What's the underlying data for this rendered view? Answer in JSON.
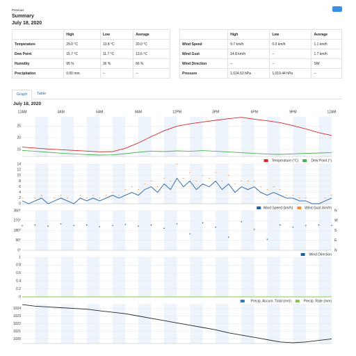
{
  "header": {
    "back": "Previous",
    "title": "Summary",
    "date": "July 18, 2020"
  },
  "tables": [
    {
      "columns": [
        "High",
        "Low",
        "Average"
      ],
      "rows": [
        [
          "Temperature",
          "29.0 °C",
          "13.8 °C",
          "20.0 °C"
        ],
        [
          "Dew Point",
          "15.7 °C",
          "11.7 °C",
          "13.6 °C"
        ],
        [
          "Humidity",
          "95 %",
          "36 %",
          "66 %"
        ],
        [
          "Precipitation",
          "0.00 mm",
          "--",
          "--"
        ]
      ]
    },
    {
      "columns": [
        "High",
        "Low",
        "Average"
      ],
      "rows": [
        [
          "Wind Speed",
          "9.7 km/h",
          "0.0 km/h",
          "1.1 km/h"
        ],
        [
          "Wind Gust",
          "14.8 km/h",
          "--",
          "1.7 km/h"
        ],
        [
          "Wind Direction",
          "--",
          "--",
          "SW"
        ],
        [
          "Pressure",
          "1,024.52 hPa",
          "1,019.44 hPa",
          "--"
        ]
      ]
    }
  ],
  "tabs": [
    "Graph",
    "Table"
  ],
  "graph_title": "July 18, 2020",
  "chart_data": [
    {
      "type": "line",
      "xlim": [
        0,
        24
      ],
      "xticks": [
        {
          "value": 0,
          "label": "12AM"
        },
        {
          "value": 3,
          "label": "3AM"
        },
        {
          "value": 6,
          "label": "6AM"
        },
        {
          "value": 9,
          "label": "9AM"
        },
        {
          "value": 12,
          "label": "12PM"
        },
        {
          "value": 15,
          "label": "3PM"
        },
        {
          "value": 18,
          "label": "6PM"
        },
        {
          "value": 21,
          "label": "9PM"
        },
        {
          "value": 24,
          "label": "12AM"
        }
      ],
      "ylim": [
        12,
        29
      ],
      "yticks": [
        15,
        20,
        25
      ],
      "x": [
        0,
        1,
        2,
        3,
        4,
        5,
        6,
        7,
        8,
        9,
        10,
        11,
        12,
        13,
        14,
        15,
        16,
        17,
        18,
        19,
        20,
        21,
        22,
        23,
        24
      ],
      "series": [
        {
          "name": "Temperature (°C)",
          "color": "#d62728",
          "values": [
            16,
            15.6,
            15.2,
            14.9,
            14.6,
            14.3,
            14.0,
            14.1,
            15.5,
            17.8,
            20.5,
            23,
            25,
            26,
            26.8,
            27.5,
            28.2,
            28.8,
            28,
            27.3,
            26.5,
            25.2,
            23.8,
            22.2,
            21
          ]
        },
        {
          "name": "Dew Point (°)",
          "color": "#4caf50",
          "values": [
            14.6,
            14.2,
            13.8,
            13.4,
            13.1,
            12.8,
            12.6,
            12.7,
            13.2,
            13.8,
            14.3,
            14.1,
            14.4,
            14.2,
            14.5,
            14.2,
            13.9,
            13.6,
            13.3,
            13.0,
            12.9,
            13.1,
            13.3,
            13.5,
            13.6
          ]
        }
      ]
    },
    {
      "type": "line",
      "xlim": [
        0,
        24
      ],
      "ylim": [
        0,
        14
      ],
      "yticks": [
        0,
        2,
        4,
        6,
        8,
        10,
        12,
        14
      ],
      "x": [
        0,
        0.5,
        1,
        1.5,
        2,
        2.5,
        3,
        3.5,
        4,
        4.5,
        5,
        5.5,
        6,
        6.5,
        7,
        7.5,
        8,
        8.5,
        9,
        9.5,
        10,
        10.5,
        11,
        11.5,
        12,
        12.5,
        13,
        13.5,
        14,
        14.5,
        15,
        15.5,
        16,
        16.5,
        17,
        17.5,
        18,
        18.5,
        19,
        19.5,
        20,
        20.5,
        21,
        21.5,
        22,
        22.5,
        23,
        23.5,
        24
      ],
      "series": [
        {
          "name": "Wind Speed (km/h)",
          "color": "#1f5f9e",
          "style": "line",
          "values": [
            1,
            0,
            1,
            2,
            0,
            1,
            2,
            1,
            0,
            2,
            1,
            2,
            1,
            2,
            3,
            2,
            3,
            4,
            3,
            5,
            6,
            4,
            7,
            5,
            9,
            6,
            8,
            5,
            7,
            6,
            8,
            5,
            7,
            4,
            6,
            5,
            6,
            4,
            3,
            4,
            3,
            2,
            2,
            1,
            1,
            0,
            0,
            1,
            2
          ]
        },
        {
          "name": "Wind Gust (km/h)",
          "color": "#f28e2b",
          "style": "markers",
          "values": [
            2,
            null,
            2,
            3,
            null,
            2,
            3,
            2,
            null,
            3,
            2,
            3,
            2,
            3,
            4,
            3,
            5,
            6,
            5,
            7,
            8,
            6,
            9,
            8,
            14,
            9,
            11,
            8,
            10,
            9,
            11,
            8,
            10,
            7,
            8,
            8,
            8,
            6,
            5,
            6,
            5,
            3,
            3,
            2,
            2,
            null,
            null,
            2,
            3
          ]
        }
      ]
    },
    {
      "type": "scatter",
      "xlim": [
        0,
        24
      ],
      "ylim": [
        0,
        360
      ],
      "yticks": [
        {
          "value": 0,
          "label": "0°"
        },
        {
          "value": 90,
          "label": "90°"
        },
        {
          "value": 180,
          "label": "180°"
        },
        {
          "value": 270,
          "label": "270°"
        },
        {
          "value": 360,
          "label": "360°"
        }
      ],
      "y2ticks": [
        {
          "value": 0,
          "label": "N"
        },
        {
          "value": 90,
          "label": "E"
        },
        {
          "value": 180,
          "label": "S"
        },
        {
          "value": 270,
          "label": "W"
        },
        {
          "value": 360,
          "label": "N"
        }
      ],
      "x": [
        0,
        1,
        2,
        3,
        4,
        5,
        6,
        7,
        8,
        9,
        10,
        11,
        12,
        13,
        14,
        15,
        16,
        17,
        18,
        19,
        20,
        21,
        22,
        23,
        24
      ],
      "series": [
        {
          "name": "Wind Direction",
          "color": "#1f5f9e",
          "values": [
            225,
            230,
            220,
            240,
            225,
            230,
            215,
            225,
            235,
            220,
            230,
            200,
            240,
            150,
            250,
            210,
            120,
            260,
            190,
            100,
            230,
            210,
            225,
            230,
            225
          ]
        }
      ]
    },
    {
      "type": "line",
      "xlim": [
        0,
        24
      ],
      "ylim": [
        0,
        1
      ],
      "yticks": [
        0,
        0.2,
        0.4,
        0.6,
        0.8,
        1
      ],
      "x": [
        0,
        24
      ],
      "series": [
        {
          "name": "Precip. Accum. Total (mm)",
          "color": "#2b7bba",
          "values": [
            0,
            0
          ]
        },
        {
          "name": "Precip. Rate (mm)",
          "color": "#8bc34a",
          "values": [
            0,
            0
          ]
        }
      ]
    },
    {
      "type": "line",
      "xlim": [
        0,
        24
      ],
      "ylim": [
        1019.4,
        1024.6
      ],
      "yticks": [
        1020,
        1021,
        1022,
        1023,
        1024
      ],
      "x": [
        0,
        1,
        2,
        3,
        4,
        5,
        6,
        7,
        8,
        9,
        10,
        11,
        12,
        13,
        14,
        15,
        16,
        17,
        18,
        19,
        20,
        21,
        22,
        23,
        24
      ],
      "series": [
        {
          "color": "#222222",
          "values": [
            1024.5,
            1024.3,
            1024.2,
            1024.1,
            1024.0,
            1023.9,
            1023.7,
            1023.5,
            1023.3,
            1023.0,
            1022.7,
            1022.4,
            1022.1,
            1021.8,
            1021.5,
            1021.2,
            1020.8,
            1020.5,
            1020.2,
            1019.9,
            1019.6,
            1019.5,
            1019.6,
            1019.8,
            1020.0
          ]
        }
      ]
    }
  ]
}
